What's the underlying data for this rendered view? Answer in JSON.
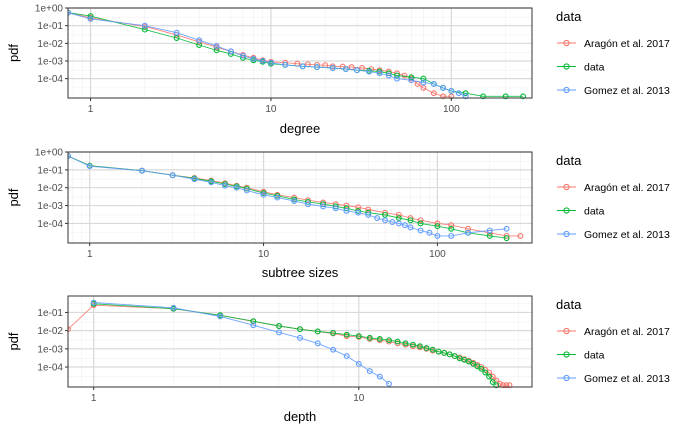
{
  "legend": {
    "title": "data",
    "entries": [
      {
        "label": "Aragón et al. 2017",
        "color": "#F8766D"
      },
      {
        "label": "data",
        "color": "#00BA38"
      },
      {
        "label": "Gomez et al. 2013",
        "color": "#619CFF"
      }
    ]
  },
  "chart_data": [
    {
      "type": "line",
      "xlabel": "degree",
      "ylabel": "pdf",
      "x_scale": "log10",
      "y_scale": "log10",
      "xlim": [
        0.75,
        280
      ],
      "ylim": [
        8e-06,
        1
      ],
      "x_ticks": [
        {
          "value": 1,
          "label": "1"
        },
        {
          "value": 10,
          "label": "10"
        },
        {
          "value": 100,
          "label": "100"
        }
      ],
      "y_ticks": [
        {
          "value": 1,
          "label": "1e+00"
        },
        {
          "value": 0.1,
          "label": "1e-01"
        },
        {
          "value": 0.01,
          "label": "1e-02"
        },
        {
          "value": 0.001,
          "label": "1e-03"
        },
        {
          "value": 0.0001,
          "label": "1e-04"
        }
      ],
      "series": [
        {
          "name": "Aragón et al. 2017",
          "x": [
            0.75,
            1,
            2,
            3,
            4,
            5,
            6,
            7,
            8,
            9,
            10,
            12,
            14,
            16,
            18,
            20,
            22,
            25,
            28,
            32,
            36,
            40,
            45,
            50,
            55,
            60,
            65,
            70,
            80,
            90,
            100
          ],
          "y": [
            0.55,
            0.28,
            0.09,
            0.03,
            0.012,
            0.006,
            0.0035,
            0.0022,
            0.0015,
            0.0011,
            0.0009,
            0.0008,
            0.0007,
            0.00065,
            0.0006,
            0.00058,
            0.0005,
            0.00048,
            0.00045,
            0.0004,
            0.00035,
            0.0003,
            0.00025,
            0.0002,
            0.00015,
            0.0001,
            5e-05,
            3e-05,
            1.5e-05,
            1e-05,
            1e-05
          ]
        },
        {
          "name": "data",
          "x": [
            0.75,
            1,
            2,
            3,
            4,
            5,
            6,
            7,
            8,
            9,
            10,
            12,
            15,
            18,
            22,
            26,
            30,
            35,
            40,
            45,
            50,
            60,
            70,
            80,
            90,
            100,
            120,
            150,
            200,
            250
          ],
          "y": [
            0.55,
            0.35,
            0.06,
            0.02,
            0.008,
            0.004,
            0.0025,
            0.0015,
            0.0011,
            0.0009,
            0.0007,
            0.0006,
            0.0005,
            0.00045,
            0.0004,
            0.00035,
            0.0003,
            0.00028,
            0.00025,
            0.0002,
            0.00015,
            0.00012,
            0.0001,
            5e-05,
            3e-05,
            2e-05,
            1.5e-05,
            1e-05,
            1e-05,
            1e-05
          ]
        },
        {
          "name": "Gomez et al. 2013",
          "x": [
            0.75,
            1,
            2,
            3,
            4,
            5,
            6,
            7,
            8,
            9,
            10,
            12,
            15,
            18,
            22,
            26,
            30,
            35,
            40,
            45,
            50,
            60,
            70,
            80,
            90,
            100,
            110,
            120
          ],
          "y": [
            0.55,
            0.24,
            0.1,
            0.04,
            0.015,
            0.007,
            0.0035,
            0.002,
            0.0013,
            0.001,
            0.0008,
            0.0006,
            0.0005,
            0.00045,
            0.0004,
            0.00035,
            0.0003,
            0.00025,
            0.0002,
            0.00015,
            0.0001,
            8e-05,
            6e-05,
            5e-05,
            3e-05,
            2e-05,
            1.5e-05,
            1e-05
          ]
        }
      ]
    },
    {
      "type": "line",
      "xlabel": "subtree sizes",
      "ylabel": "pdf",
      "x_scale": "log10",
      "y_scale": "log10",
      "xlim": [
        0.75,
        350
      ],
      "ylim": [
        8e-06,
        1
      ],
      "x_ticks": [
        {
          "value": 1,
          "label": "1"
        },
        {
          "value": 10,
          "label": "10"
        },
        {
          "value": 100,
          "label": "100"
        }
      ],
      "y_ticks": [
        {
          "value": 1,
          "label": "1e+00"
        },
        {
          "value": 0.1,
          "label": "1e-01"
        },
        {
          "value": 0.01,
          "label": "1e-02"
        },
        {
          "value": 0.001,
          "label": "1e-03"
        },
        {
          "value": 0.0001,
          "label": "1e-04"
        }
      ],
      "series": [
        {
          "name": "Aragón et al. 2017",
          "x": [
            0.75,
            1,
            2,
            3,
            4,
            5,
            6,
            7,
            8,
            10,
            12,
            15,
            18,
            22,
            26,
            30,
            35,
            40,
            50,
            60,
            70,
            80,
            100,
            120,
            150,
            200,
            250,
            300
          ],
          "y": [
            0.6,
            0.17,
            0.09,
            0.05,
            0.035,
            0.025,
            0.018,
            0.013,
            0.01,
            0.006,
            0.004,
            0.0028,
            0.002,
            0.0015,
            0.0012,
            0.001,
            0.0008,
            0.0006,
            0.0004,
            0.0003,
            0.0002,
            0.00015,
            0.0001,
            8e-05,
            5e-05,
            3e-05,
            2e-05,
            2e-05
          ]
        },
        {
          "name": "data",
          "x": [
            0.75,
            1,
            2,
            3,
            4,
            5,
            6,
            7,
            8,
            10,
            12,
            15,
            18,
            22,
            26,
            30,
            35,
            40,
            50,
            60,
            70,
            80,
            100,
            120,
            150,
            200,
            250
          ],
          "y": [
            0.6,
            0.17,
            0.09,
            0.05,
            0.033,
            0.023,
            0.016,
            0.012,
            0.009,
            0.005,
            0.0035,
            0.0022,
            0.0016,
            0.0012,
            0.0009,
            0.0007,
            0.0005,
            0.0004,
            0.0003,
            0.0002,
            0.00015,
            0.0001,
            7e-05,
            5e-05,
            3e-05,
            2e-05,
            1.5e-05
          ]
        },
        {
          "name": "Gomez et al. 2013",
          "x": [
            0.75,
            1,
            2,
            3,
            4,
            5,
            6,
            7,
            8,
            10,
            12,
            15,
            18,
            22,
            26,
            30,
            35,
            40,
            45,
            50,
            55,
            60,
            65,
            70,
            80,
            90,
            100,
            120,
            150,
            200,
            250
          ],
          "y": [
            0.6,
            0.16,
            0.09,
            0.05,
            0.03,
            0.02,
            0.013,
            0.01,
            0.007,
            0.004,
            0.0028,
            0.0018,
            0.0012,
            0.0009,
            0.0007,
            0.0005,
            0.0004,
            0.0003,
            0.0002,
            0.00015,
            0.00012,
            0.0001,
            8e-05,
            6e-05,
            4e-05,
            3e-05,
            2e-05,
            2e-05,
            3e-05,
            4e-05,
            5e-05
          ]
        }
      ]
    },
    {
      "type": "line",
      "xlabel": "depth",
      "ylabel": "pdf",
      "x_scale": "log10",
      "y_scale": "log10",
      "xlim": [
        0.8,
        45
      ],
      "ylim": [
        8e-06,
        0.8
      ],
      "x_ticks": [
        {
          "value": 1,
          "label": "1"
        },
        {
          "value": 10,
          "label": "10"
        }
      ],
      "y_ticks": [
        {
          "value": 0.1,
          "label": "1e-01"
        },
        {
          "value": 0.01,
          "label": "1e-02"
        },
        {
          "value": 0.001,
          "label": "1e-03"
        },
        {
          "value": 0.0001,
          "label": "1e-04"
        }
      ],
      "series": [
        {
          "name": "Aragón et al. 2017",
          "x": [
            0.8,
            1,
            2,
            3,
            4,
            5,
            6,
            7,
            8,
            9,
            10,
            11,
            12,
            13,
            14,
            15,
            16,
            17,
            18,
            19,
            20,
            21,
            22,
            23,
            24,
            25,
            26,
            27,
            28,
            29,
            30,
            31,
            32,
            33,
            34,
            35,
            36,
            37
          ],
          "y": [
            0.012,
            0.25,
            0.16,
            0.07,
            0.032,
            0.018,
            0.012,
            0.009,
            0.007,
            0.005,
            0.0045,
            0.0035,
            0.003,
            0.0025,
            0.002,
            0.0017,
            0.0014,
            0.0012,
            0.001,
            0.0008,
            0.0007,
            0.0006,
            0.0005,
            0.0004,
            0.00033,
            0.00027,
            0.00022,
            0.00017,
            0.00013,
            0.0001,
            7e-05,
            5e-05,
            3e-05,
            1.8e-05,
            1.2e-05,
            1e-05,
            1e-05,
            1e-05
          ]
        },
        {
          "name": "data",
          "x": [
            1,
            2,
            3,
            4,
            5,
            6,
            7,
            8,
            9,
            10,
            11,
            12,
            13,
            14,
            15,
            16,
            17,
            18,
            19,
            20,
            21,
            22,
            23,
            24,
            25,
            26,
            27,
            28,
            29,
            30,
            31,
            32,
            33
          ],
          "y": [
            0.3,
            0.16,
            0.07,
            0.033,
            0.018,
            0.012,
            0.009,
            0.0075,
            0.006,
            0.005,
            0.004,
            0.0035,
            0.003,
            0.0025,
            0.002,
            0.0017,
            0.0014,
            0.0011,
            0.0009,
            0.0007,
            0.0006,
            0.0005,
            0.0004,
            0.0003,
            0.00025,
            0.0002,
            0.00015,
            0.00011,
            8e-05,
            5e-05,
            3e-05,
            1.5e-05,
            1e-05
          ]
        },
        {
          "name": "Gomez et al. 2013",
          "x": [
            1,
            2,
            3,
            4,
            5,
            6,
            7,
            8,
            9,
            10,
            11,
            12,
            13
          ],
          "y": [
            0.35,
            0.18,
            0.06,
            0.02,
            0.008,
            0.004,
            0.002,
            0.0009,
            0.0004,
            0.00015,
            6e-05,
            3e-05,
            1.2e-05
          ]
        }
      ]
    }
  ]
}
